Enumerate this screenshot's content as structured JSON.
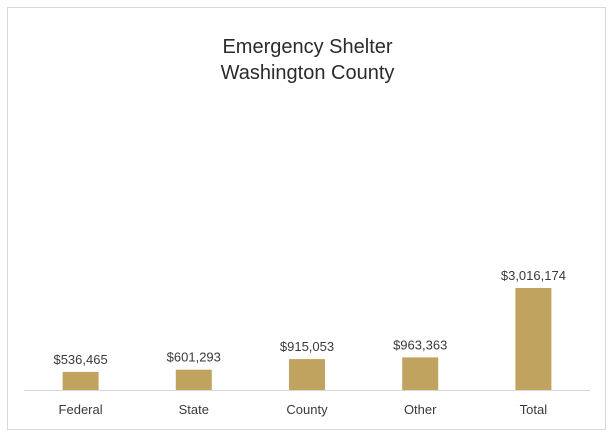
{
  "chart_data": {
    "type": "bar",
    "title": [
      "Emergency Shelter",
      "Washington County"
    ],
    "xlabel": "",
    "ylabel": "",
    "categories": [
      "Federal",
      "State",
      "County",
      "Other",
      "Total"
    ],
    "values": [
      536465,
      601293,
      915053,
      963363,
      3016174
    ],
    "value_labels": [
      "$536,465",
      "$601,293",
      "$915,053",
      "$963,363",
      "$3,016,174"
    ],
    "bar_color": "#c0a35e",
    "axis_color": "#d9d9d9",
    "grid": false,
    "legend": "none"
  }
}
